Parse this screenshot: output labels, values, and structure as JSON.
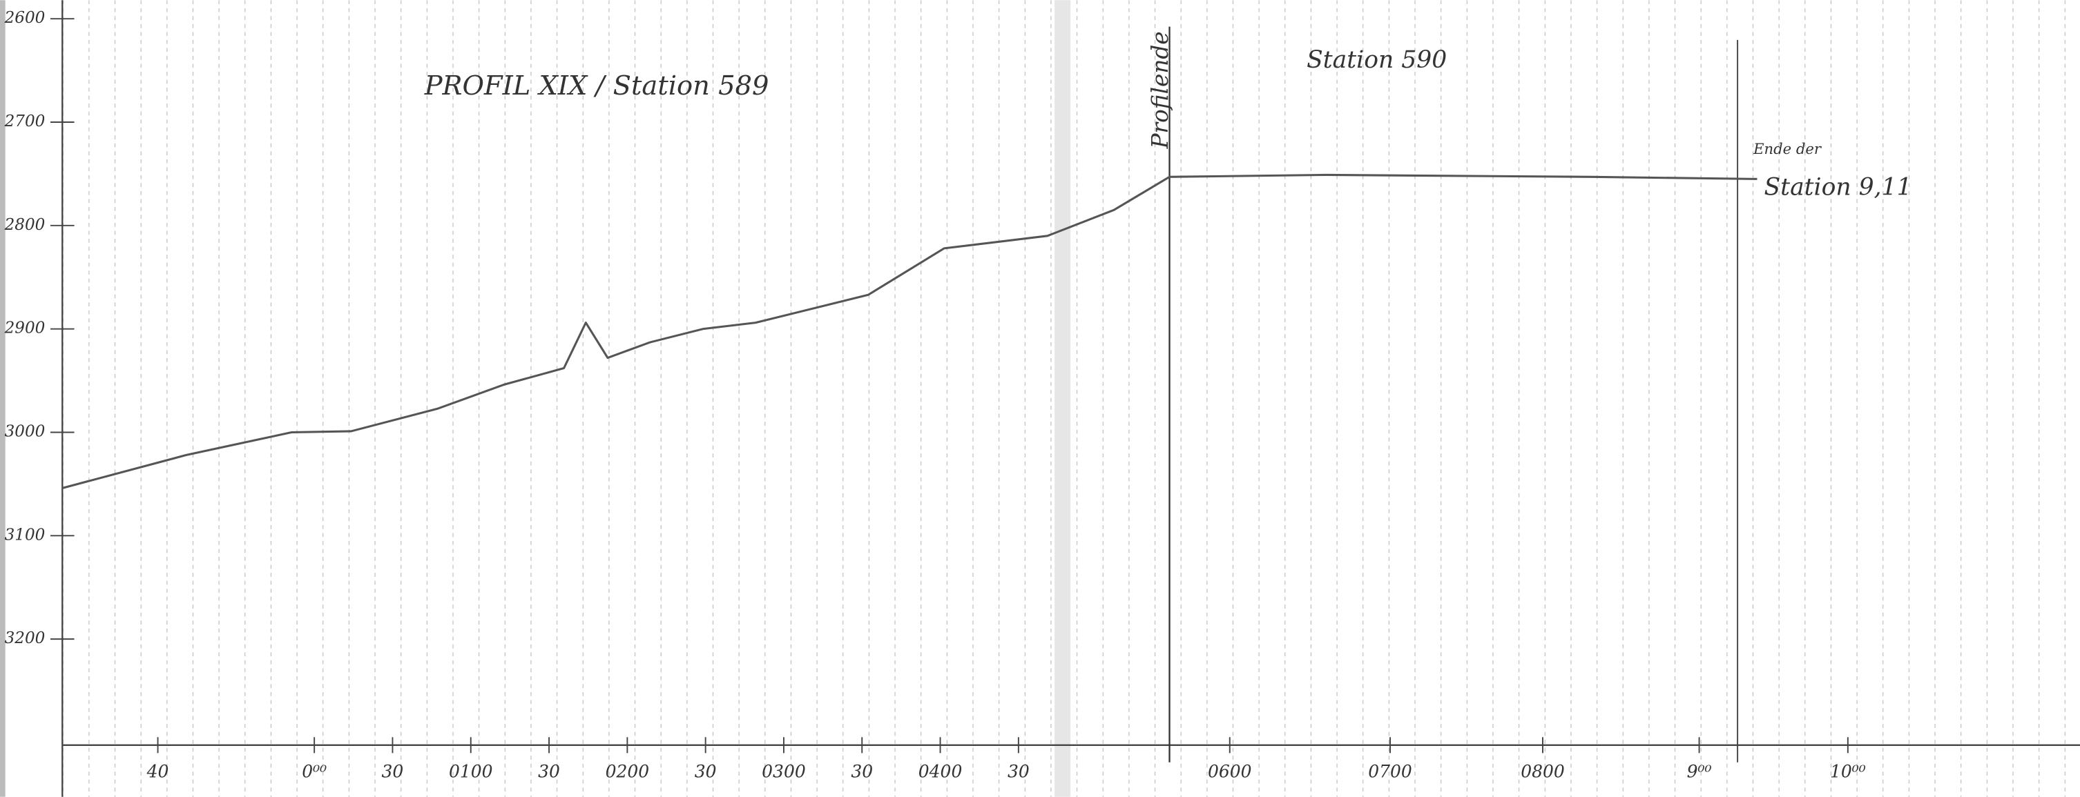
{
  "chart_data": {
    "type": "line",
    "title": "PROFIL XIX / Station 589",
    "subtitle": "Station 590",
    "annotations": [
      {
        "text": "Profilende",
        "x": 10.93
      },
      {
        "text": "Ende der",
        "x": 18.19
      },
      {
        "text": "Station 9,11",
        "x": 18.19
      }
    ],
    "xlim": [
      -3.2,
      22.55
    ],
    "ylim": [
      3300,
      2600
    ],
    "yticks": [
      2600,
      2700,
      2800,
      2900,
      3000,
      3100,
      3200
    ],
    "xticks": [
      {
        "value": -2,
        "label": "40"
      },
      {
        "value": 0,
        "label": "0⁰⁰"
      },
      {
        "value": 1,
        "label": "30"
      },
      {
        "value": 2,
        "label": "0100"
      },
      {
        "value": 3,
        "label": "30"
      },
      {
        "value": 4,
        "label": "0200"
      },
      {
        "value": 5,
        "label": "30"
      },
      {
        "value": 6,
        "label": "0300"
      },
      {
        "value": 7,
        "label": "30"
      },
      {
        "value": 8,
        "label": "0400"
      },
      {
        "value": 9,
        "label": "30"
      },
      {
        "value": 11.7,
        "label": "0600"
      },
      {
        "value": 13.75,
        "label": "0700"
      },
      {
        "value": 15.7,
        "label": "0800"
      },
      {
        "value": 17.7,
        "label": "9⁰⁰"
      },
      {
        "value": 19.6,
        "label": "10⁰⁰"
      }
    ],
    "grid": true,
    "series": [
      {
        "color": "#555555",
        "x": [
          -3.22,
          -1.64,
          -0.29,
          0.47,
          1.58,
          2.42,
          3.19,
          3.47,
          3.75,
          4.29,
          4.97,
          5.64,
          7.08,
          8.05,
          9.37,
          10.22,
          10.93,
          12.93,
          16.32,
          18.44
        ],
        "values": [
          3054,
          3022,
          3000,
          2999,
          2977,
          2954,
          2938,
          2894,
          2928,
          2913,
          2900,
          2894,
          2867,
          2822,
          2810,
          2785,
          2753,
          2751,
          2753,
          2755
        ]
      }
    ]
  }
}
